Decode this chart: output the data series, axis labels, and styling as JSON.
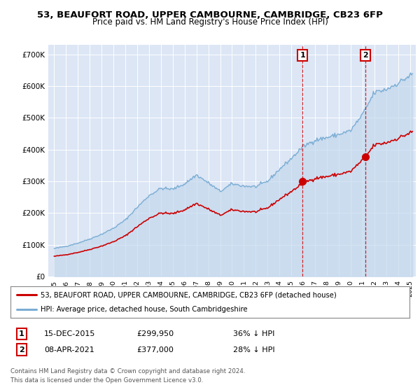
{
  "title": "53, BEAUFORT ROAD, UPPER CAMBOURNE, CAMBRIDGE, CB23 6FP",
  "subtitle": "Price paid vs. HM Land Registry's House Price Index (HPI)",
  "legend_line1": "53, BEAUFORT ROAD, UPPER CAMBOURNE, CAMBRIDGE, CB23 6FP (detached house)",
  "legend_line2": "HPI: Average price, detached house, South Cambridgeshire",
  "purchase1_date": "15-DEC-2015",
  "purchase1_year": 2015.96,
  "purchase1_price": 299950,
  "purchase2_date": "08-APR-2021",
  "purchase2_year": 2021.27,
  "purchase2_price": 377000,
  "purchase1_pct": "36% ↓ HPI",
  "purchase2_pct": "28% ↓ HPI",
  "ylabel_ticks": [
    "£0",
    "£100K",
    "£200K",
    "£300K",
    "£400K",
    "£500K",
    "£600K",
    "£700K"
  ],
  "ytick_vals": [
    0,
    100000,
    200000,
    300000,
    400000,
    500000,
    600000,
    700000
  ],
  "ylim": [
    0,
    730000
  ],
  "xlim_min": 1994.5,
  "xlim_max": 2025.5,
  "hpi_color": "#7aadd4",
  "hpi_fill": "#c5d9ed",
  "price_color": "#cc0000",
  "bg_color": "#dce6f5",
  "grid_color": "#ffffff",
  "footer1": "Contains HM Land Registry data © Crown copyright and database right 2024.",
  "footer2": "This data is licensed under the Open Government Licence v3.0.",
  "title_fontsize": 9.5,
  "subtitle_fontsize": 8.5,
  "axis_fontsize": 7.5,
  "hpi_base_points": [
    [
      1995.0,
      88000
    ],
    [
      1996.0,
      95000
    ],
    [
      1997.0,
      105000
    ],
    [
      1998.0,
      118000
    ],
    [
      1999.0,
      133000
    ],
    [
      2000.0,
      152000
    ],
    [
      2001.0,
      178000
    ],
    [
      2002.0,
      218000
    ],
    [
      2003.0,
      255000
    ],
    [
      2004.0,
      278000
    ],
    [
      2005.0,
      275000
    ],
    [
      2006.0,
      292000
    ],
    [
      2007.0,
      320000
    ],
    [
      2008.0,
      295000
    ],
    [
      2009.0,
      268000
    ],
    [
      2010.0,
      292000
    ],
    [
      2011.0,
      285000
    ],
    [
      2012.0,
      283000
    ],
    [
      2013.0,
      300000
    ],
    [
      2014.0,
      338000
    ],
    [
      2015.0,
      372000
    ],
    [
      2016.0,
      410000
    ],
    [
      2017.0,
      430000
    ],
    [
      2018.0,
      438000
    ],
    [
      2019.0,
      448000
    ],
    [
      2020.0,
      460000
    ],
    [
      2021.0,
      510000
    ],
    [
      2022.0,
      580000
    ],
    [
      2023.0,
      590000
    ],
    [
      2024.0,
      610000
    ],
    [
      2025.3,
      640000
    ]
  ]
}
